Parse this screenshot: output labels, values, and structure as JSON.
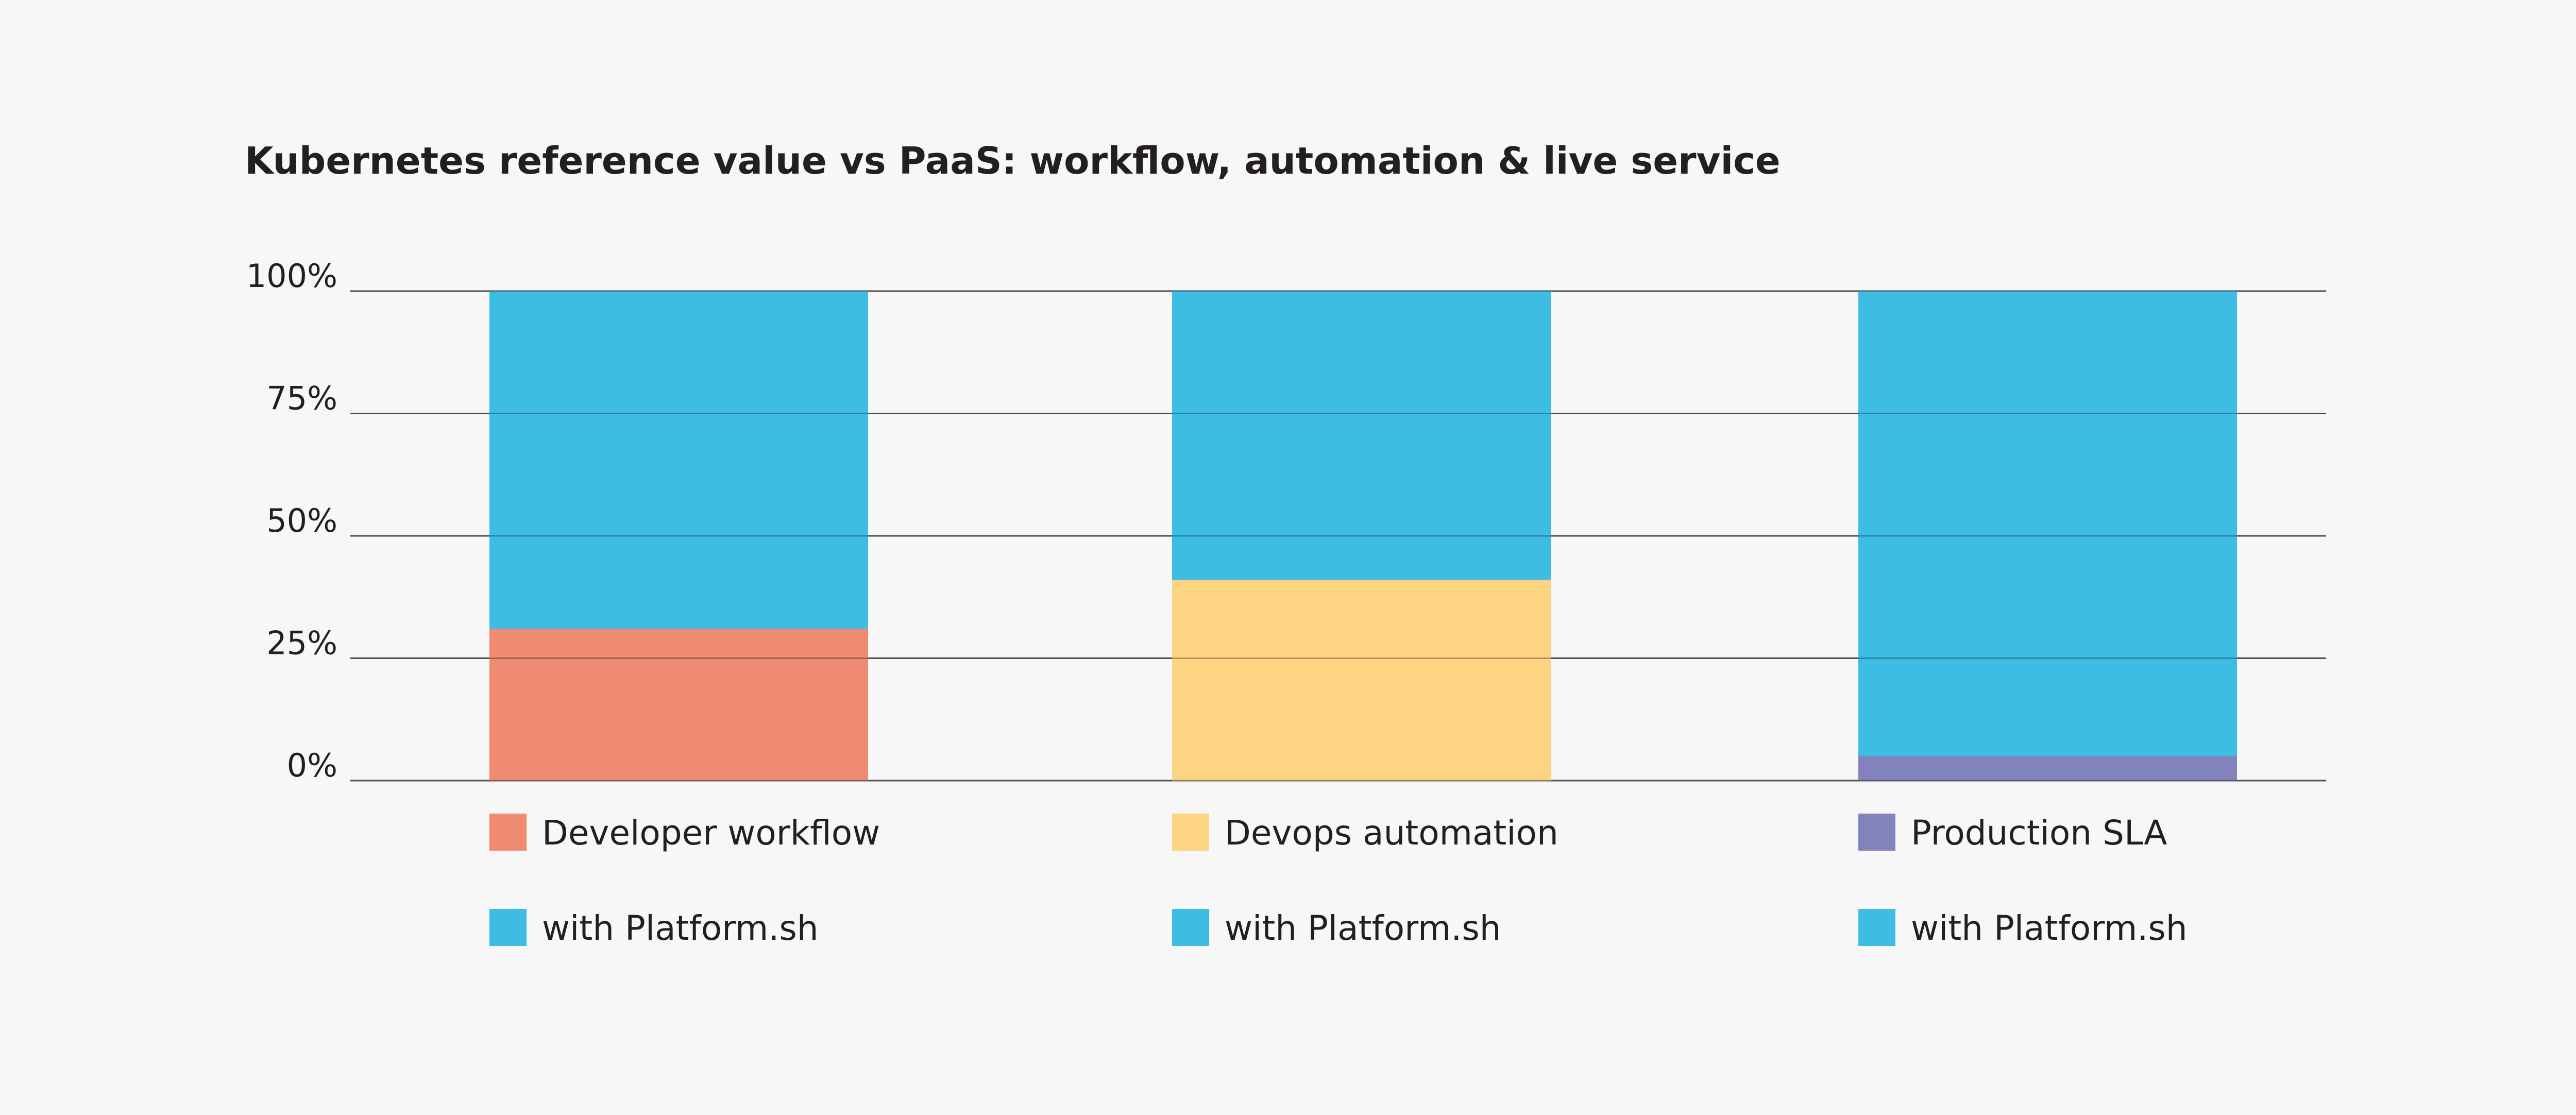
{
  "chart_data": {
    "type": "bar",
    "stacked": true,
    "title": "Kubernetes reference value vs PaaS: workflow, automation & live service",
    "xlabel": "",
    "ylabel": "",
    "ylim": [
      0,
      100
    ],
    "yticks": [
      "0%",
      "25%",
      "50%",
      "75%",
      "100%"
    ],
    "grid": true,
    "legend_position": "bottom",
    "groups": [
      {
        "segments": [
          {
            "name": "Developer workflow",
            "value": 31,
            "color": "#ee8b72"
          },
          {
            "name": "with Platform.sh",
            "value": 69,
            "color": "#3ebde4"
          }
        ]
      },
      {
        "segments": [
          {
            "name": "Devops automation",
            "value": 41,
            "color": "#fdd482"
          },
          {
            "name": "with Platform.sh",
            "value": 59,
            "color": "#3ebde4"
          }
        ]
      },
      {
        "segments": [
          {
            "name": "Production SLA",
            "value": 5,
            "color": "#8383bc"
          },
          {
            "name": "with Platform.sh",
            "value": 95,
            "color": "#3ebde4"
          }
        ]
      }
    ]
  }
}
